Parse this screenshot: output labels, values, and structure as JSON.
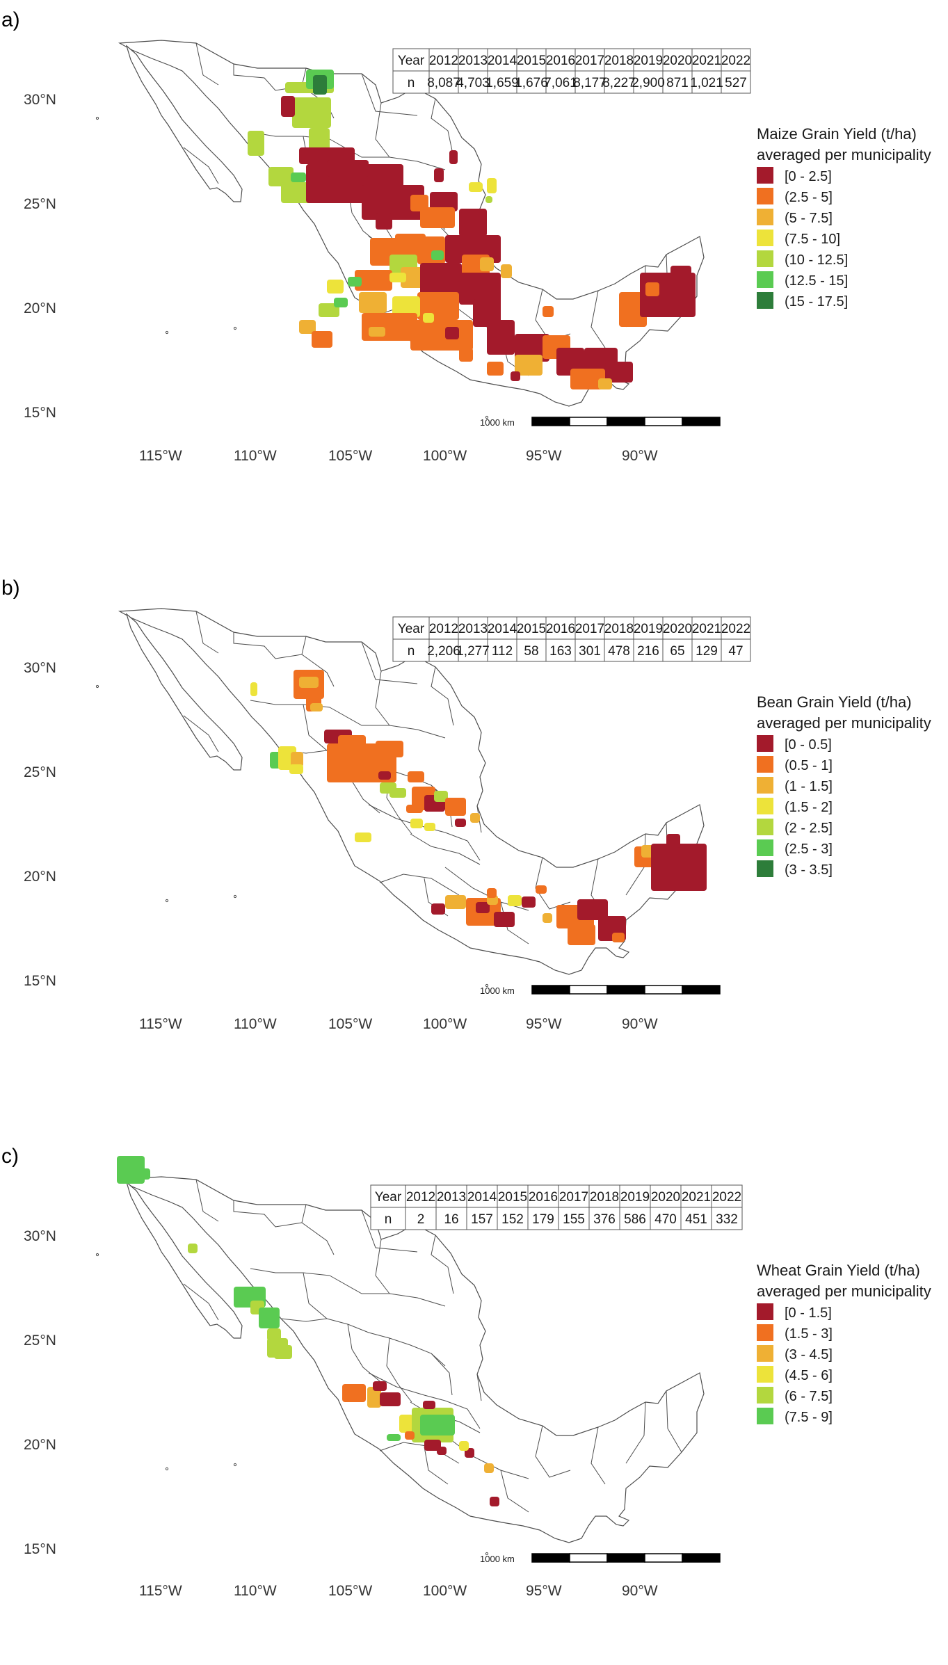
{
  "colors": {
    "c1": "#a31a2b",
    "c2": "#f07020",
    "c3": "#efb034",
    "c4": "#ede33a",
    "c5": "#b3d73e",
    "c6": "#5acb52",
    "c7": "#2d7d3a",
    "border": "#4d4d4d"
  },
  "panels": [
    {
      "letter": "a)",
      "table": {
        "row_header": [
          "Year",
          "n"
        ],
        "years": [
          "2012",
          "2013",
          "2014",
          "2015",
          "2016",
          "2017",
          "2018",
          "2019",
          "2020",
          "2021",
          "2022"
        ],
        "counts": [
          "8,087",
          "4,703",
          "1,659",
          "1,676",
          "7,061",
          "8,177",
          "8,227",
          "2,900",
          "871",
          "1,021",
          "527"
        ]
      },
      "legend": {
        "title_line1": "Maize Grain Yield (t/ha)",
        "title_line2": "averaged per municipality",
        "items": [
          "[0 - 2.5]",
          "(2.5 - 5]",
          "(5 - 7.5]",
          "(7.5 - 10]",
          "(10 - 12.5]",
          "(12.5 - 15]",
          "(15 - 17.5]"
        ]
      },
      "lat_labels": [
        "30°N",
        "25°N",
        "20°N",
        "15°N"
      ],
      "lon_labels": [
        "115°W",
        "110°W",
        "105°W",
        "100°W",
        "95°W",
        "90°W"
      ],
      "scale_label": "1000 km"
    },
    {
      "letter": "b)",
      "table": {
        "row_header": [
          "Year",
          "n"
        ],
        "years": [
          "2012",
          "2013",
          "2014",
          "2015",
          "2016",
          "2017",
          "2018",
          "2019",
          "2020",
          "2021",
          "2022"
        ],
        "counts": [
          "2,206",
          "1,277",
          "112",
          "58",
          "163",
          "301",
          "478",
          "216",
          "65",
          "129",
          "47"
        ]
      },
      "legend": {
        "title_line1": "Bean Grain Yield (t/ha)",
        "title_line2": "averaged per municipality",
        "items": [
          "[0 - 0.5]",
          "(0.5 - 1]",
          "(1 - 1.5]",
          "(1.5 - 2]",
          "(2 - 2.5]",
          "(2.5 - 3]",
          "(3 - 3.5]"
        ]
      },
      "lat_labels": [
        "30°N",
        "25°N",
        "20°N",
        "15°N"
      ],
      "lon_labels": [
        "115°W",
        "110°W",
        "105°W",
        "100°W",
        "95°W",
        "90°W"
      ],
      "scale_label": "1000 km"
    },
    {
      "letter": "c)",
      "table": {
        "row_header": [
          "Year",
          "n"
        ],
        "years": [
          "2012",
          "2013",
          "2014",
          "2015",
          "2016",
          "2017",
          "2018",
          "2019",
          "2020",
          "2021",
          "2022"
        ],
        "counts": [
          "2",
          "16",
          "157",
          "152",
          "179",
          "155",
          "376",
          "586",
          "470",
          "451",
          "332"
        ]
      },
      "legend": {
        "title_line1": "Wheat Grain Yield (t/ha)",
        "title_line2": "averaged per municipality",
        "items": [
          "[0 - 1.5]",
          "(1.5 - 3]",
          "(3 - 4.5]",
          "(4.5 - 6]",
          "(6 - 7.5]",
          "(7.5 - 9]"
        ]
      },
      "lat_labels": [
        "30°N",
        "25°N",
        "20°N",
        "15°N"
      ],
      "lon_labels": [
        "115°W",
        "110°W",
        "105°W",
        "100°W",
        "95°W",
        "90°W"
      ],
      "scale_label": "1000 km"
    }
  ]
}
